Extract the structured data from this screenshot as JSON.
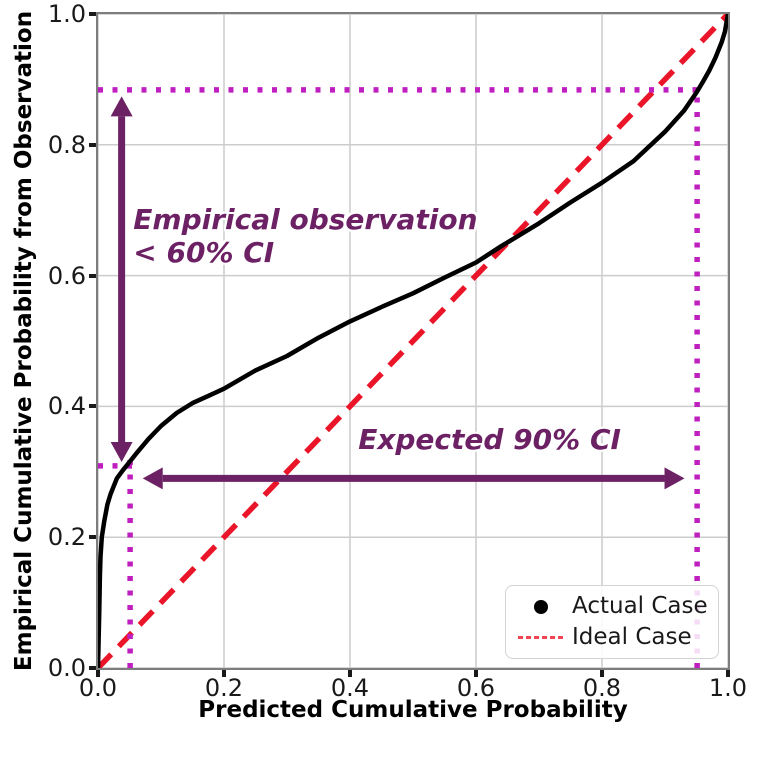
{
  "chart_data": {
    "type": "line",
    "title": "",
    "xlabel": "Predicted Cumulative Probability",
    "ylabel": "Empirical Cumulative Probability from Observation",
    "xlim": [
      0.0,
      1.0
    ],
    "ylim": [
      0.0,
      1.0
    ],
    "grid": true,
    "grid_color": "#cccccc",
    "xticks": [
      0.0,
      0.2,
      0.4,
      0.6,
      0.8,
      1.0
    ],
    "yticks": [
      0.0,
      0.2,
      0.4,
      0.6,
      0.8,
      1.0
    ],
    "xtick_labels": [
      "0.0",
      "0.2",
      "0.4",
      "0.6",
      "0.8",
      "1.0"
    ],
    "ytick_labels": [
      "0.0",
      "0.2",
      "0.4",
      "0.6",
      "0.8",
      "1.0"
    ],
    "legend_position": "lower right",
    "series": [
      {
        "name": "Actual Case",
        "style": "solid",
        "color": "#000000",
        "points": [
          [
            0.0,
            0.0
          ],
          [
            0.002,
            0.09
          ],
          [
            0.003,
            0.14
          ],
          [
            0.004,
            0.17
          ],
          [
            0.006,
            0.2
          ],
          [
            0.01,
            0.225
          ],
          [
            0.015,
            0.25
          ],
          [
            0.02,
            0.266
          ],
          [
            0.03,
            0.29
          ],
          [
            0.04,
            0.303
          ],
          [
            0.05,
            0.315
          ],
          [
            0.06,
            0.327
          ],
          [
            0.08,
            0.35
          ],
          [
            0.1,
            0.37
          ],
          [
            0.125,
            0.39
          ],
          [
            0.15,
            0.405
          ],
          [
            0.175,
            0.416
          ],
          [
            0.2,
            0.427
          ],
          [
            0.25,
            0.455
          ],
          [
            0.3,
            0.477
          ],
          [
            0.35,
            0.505
          ],
          [
            0.4,
            0.53
          ],
          [
            0.45,
            0.552
          ],
          [
            0.5,
            0.573
          ],
          [
            0.55,
            0.597
          ],
          [
            0.6,
            0.62
          ],
          [
            0.64,
            0.645
          ],
          [
            0.7,
            0.68
          ],
          [
            0.75,
            0.712
          ],
          [
            0.8,
            0.742
          ],
          [
            0.85,
            0.775
          ],
          [
            0.9,
            0.82
          ],
          [
            0.93,
            0.852
          ],
          [
            0.95,
            0.88
          ],
          [
            0.96,
            0.896
          ],
          [
            0.97,
            0.913
          ],
          [
            0.98,
            0.933
          ],
          [
            0.99,
            0.957
          ],
          [
            0.995,
            0.973
          ],
          [
            1.0,
            1.0
          ]
        ]
      },
      {
        "name": "Ideal Case",
        "style": "dashed",
        "color": "#ea1528",
        "points": [
          [
            0.0,
            0.0
          ],
          [
            1.0,
            1.0
          ]
        ]
      }
    ],
    "ci_guides": {
      "color": "#c01fc0",
      "marked_points": [
        [
          0.05,
          0.31
        ],
        [
          0.95,
          0.884
        ]
      ],
      "lines": [
        {
          "orient": "h",
          "y": 0.884,
          "x1": 0.0,
          "x2": 0.951
        },
        {
          "orient": "v",
          "x": 0.951,
          "y1": 0.0,
          "y2": 0.884
        },
        {
          "orient": "h",
          "y": 0.309,
          "x1": 0.0,
          "x2": 0.063
        },
        {
          "orient": "v",
          "x": 0.051,
          "y1": 0.0,
          "y2": 0.318
        }
      ]
    },
    "arrows": [
      {
        "orient": "v",
        "x": 0.0375,
        "y1": 0.315,
        "y2": 0.874,
        "color": "#6d2165"
      },
      {
        "orient": "h",
        "y": 0.29,
        "x1": 0.071,
        "x2": 0.931,
        "color": "#6d2165"
      }
    ],
    "annotations": [
      {
        "text": "Empirical observation\n< 60% CI",
        "x": 0.056,
        "y": 0.711,
        "color": "#6d2165"
      },
      {
        "text": "Expected 90% CI",
        "x": 0.413,
        "y": 0.375,
        "color": "#6d2165"
      }
    ]
  },
  "legend": {
    "items": [
      {
        "label": "Actual Case",
        "marker": "dot",
        "color": "#000000"
      },
      {
        "label": "Ideal Case",
        "marker": "dash",
        "color": "rgba(234,21,40,0.8)"
      }
    ]
  }
}
